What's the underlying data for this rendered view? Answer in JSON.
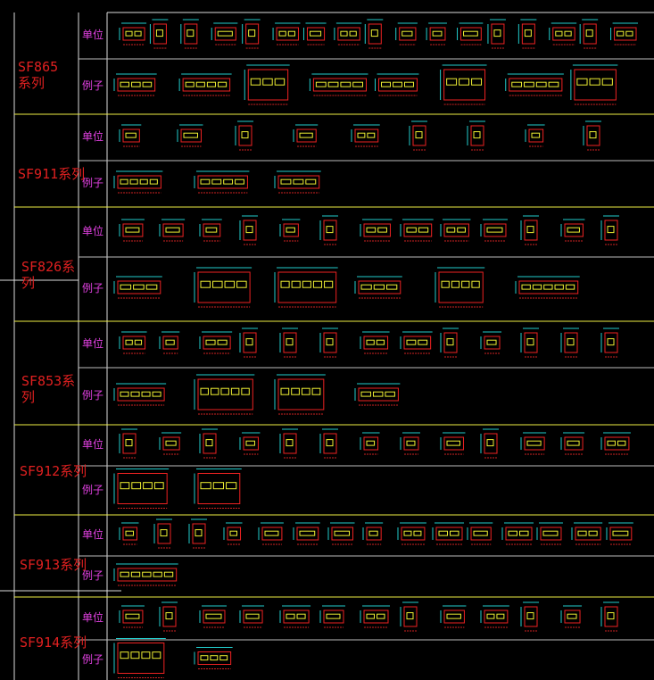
{
  "sections": [
    {
      "name": "SF865系列",
      "units_label": "单位",
      "examples_label": "例子"
    },
    {
      "name": "SF911系列",
      "units_label": "单位",
      "examples_label": "例子"
    },
    {
      "name": "SF826系列",
      "units_label": "单位",
      "examples_label": "例子"
    },
    {
      "name": "SF853系列",
      "units_label": "单位",
      "examples_label": "例子"
    },
    {
      "name": "SF912系列",
      "units_label": "单位",
      "examples_label": "例子"
    },
    {
      "name": "SF913系列",
      "units_label": "单位",
      "examples_label": "例子"
    },
    {
      "name": "SF914系列",
      "units_label": "单位",
      "examples_label": "例子"
    }
  ]
}
